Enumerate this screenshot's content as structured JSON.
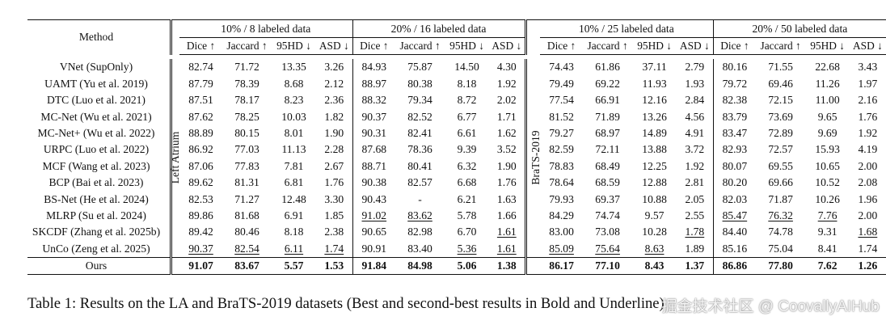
{
  "table": {
    "method_header": "Method",
    "groups": [
      {
        "label": "10% / 8 labeled data"
      },
      {
        "label": "20% / 16 labeled data"
      },
      {
        "label": "10% / 25 labeled data"
      },
      {
        "label": "20% / 50 labeled data"
      }
    ],
    "metrics": [
      "Dice ↑",
      "Jaccard ↑",
      "95HD ↓",
      "ASD ↓"
    ],
    "datasets": [
      {
        "label": "Left Atrium"
      },
      {
        "label": "BraTS-2019"
      }
    ],
    "rows": [
      {
        "method": "VNet (SupOnly)",
        "cells": [
          {
            "v": "82.74"
          },
          {
            "v": "71.72"
          },
          {
            "v": "13.35"
          },
          {
            "v": "3.26"
          },
          {
            "v": "84.93"
          },
          {
            "v": "75.87"
          },
          {
            "v": "14.50"
          },
          {
            "v": "4.30"
          },
          {
            "v": "74.43"
          },
          {
            "v": "61.86"
          },
          {
            "v": "37.11"
          },
          {
            "v": "2.79"
          },
          {
            "v": "80.16"
          },
          {
            "v": "71.55"
          },
          {
            "v": "22.68"
          },
          {
            "v": "3.43"
          }
        ]
      },
      {
        "method": "UAMT (Yu et al. 2019)",
        "cells": [
          {
            "v": "87.79"
          },
          {
            "v": "78.39"
          },
          {
            "v": "8.68"
          },
          {
            "v": "2.12"
          },
          {
            "v": "88.97"
          },
          {
            "v": "80.38"
          },
          {
            "v": "8.18"
          },
          {
            "v": "1.92"
          },
          {
            "v": "79.49"
          },
          {
            "v": "69.22"
          },
          {
            "v": "11.93"
          },
          {
            "v": "1.93"
          },
          {
            "v": "79.72"
          },
          {
            "v": "69.46"
          },
          {
            "v": "11.26"
          },
          {
            "v": "1.97"
          }
        ]
      },
      {
        "method": "DTC (Luo et al. 2021)",
        "cells": [
          {
            "v": "87.51"
          },
          {
            "v": "78.17"
          },
          {
            "v": "8.23"
          },
          {
            "v": "2.36"
          },
          {
            "v": "88.32"
          },
          {
            "v": "79.34"
          },
          {
            "v": "8.72"
          },
          {
            "v": "2.02"
          },
          {
            "v": "77.54"
          },
          {
            "v": "66.91"
          },
          {
            "v": "12.16"
          },
          {
            "v": "2.84"
          },
          {
            "v": "82.38"
          },
          {
            "v": "72.15"
          },
          {
            "v": "11.00"
          },
          {
            "v": "2.16"
          }
        ]
      },
      {
        "method": "MC-Net (Wu et al. 2021)",
        "cells": [
          {
            "v": "87.62"
          },
          {
            "v": "78.25"
          },
          {
            "v": "10.03"
          },
          {
            "v": "1.82"
          },
          {
            "v": "90.37"
          },
          {
            "v": "82.52"
          },
          {
            "v": "6.77"
          },
          {
            "v": "1.71"
          },
          {
            "v": "81.52"
          },
          {
            "v": "71.89"
          },
          {
            "v": "13.26"
          },
          {
            "v": "4.56"
          },
          {
            "v": "83.79"
          },
          {
            "v": "73.69"
          },
          {
            "v": "9.65"
          },
          {
            "v": "1.76"
          }
        ]
      },
      {
        "method": "MC-Net+ (Wu et al. 2022)",
        "cells": [
          {
            "v": "88.89"
          },
          {
            "v": "80.15"
          },
          {
            "v": "8.01"
          },
          {
            "v": "1.90"
          },
          {
            "v": "90.31"
          },
          {
            "v": "82.41"
          },
          {
            "v": "6.61"
          },
          {
            "v": "1.62"
          },
          {
            "v": "79.27"
          },
          {
            "v": "68.97"
          },
          {
            "v": "14.89"
          },
          {
            "v": "4.91"
          },
          {
            "v": "83.47"
          },
          {
            "v": "72.89"
          },
          {
            "v": "9.69"
          },
          {
            "v": "1.92"
          }
        ]
      },
      {
        "method": "URPC (Luo et al. 2022)",
        "cells": [
          {
            "v": "86.92"
          },
          {
            "v": "77.03"
          },
          {
            "v": "11.13"
          },
          {
            "v": "2.28"
          },
          {
            "v": "87.68"
          },
          {
            "v": "78.36"
          },
          {
            "v": "9.39"
          },
          {
            "v": "3.52"
          },
          {
            "v": "82.59"
          },
          {
            "v": "72.11"
          },
          {
            "v": "13.88"
          },
          {
            "v": "3.72"
          },
          {
            "v": "82.93"
          },
          {
            "v": "72.57"
          },
          {
            "v": "15.93"
          },
          {
            "v": "4.19"
          }
        ]
      },
      {
        "method": "MCF (Wang et al. 2023)",
        "cells": [
          {
            "v": "87.06"
          },
          {
            "v": "77.83"
          },
          {
            "v": "7.81"
          },
          {
            "v": "2.67"
          },
          {
            "v": "88.71"
          },
          {
            "v": "80.41"
          },
          {
            "v": "6.32"
          },
          {
            "v": "1.90"
          },
          {
            "v": "78.83"
          },
          {
            "v": "68.49"
          },
          {
            "v": "12.25"
          },
          {
            "v": "1.92"
          },
          {
            "v": "80.07"
          },
          {
            "v": "69.55"
          },
          {
            "v": "10.65"
          },
          {
            "v": "2.00"
          }
        ]
      },
      {
        "method": "BCP (Bai et al. 2023)",
        "cells": [
          {
            "v": "89.62"
          },
          {
            "v": "81.31"
          },
          {
            "v": "6.81"
          },
          {
            "v": "1.76"
          },
          {
            "v": "90.38"
          },
          {
            "v": "82.57"
          },
          {
            "v": "6.68"
          },
          {
            "v": "1.76"
          },
          {
            "v": "78.64"
          },
          {
            "v": "68.59"
          },
          {
            "v": "12.88"
          },
          {
            "v": "2.81"
          },
          {
            "v": "80.20"
          },
          {
            "v": "69.66"
          },
          {
            "v": "10.52"
          },
          {
            "v": "2.08"
          }
        ]
      },
      {
        "method": "BS-Net (He et al. 2024)",
        "cells": [
          {
            "v": "82.53"
          },
          {
            "v": "71.27"
          },
          {
            "v": "12.48"
          },
          {
            "v": "3.30"
          },
          {
            "v": "90.43"
          },
          {
            "v": "-"
          },
          {
            "v": "6.21"
          },
          {
            "v": "1.63"
          },
          {
            "v": "79.93"
          },
          {
            "v": "69.37"
          },
          {
            "v": "10.88"
          },
          {
            "v": "2.05"
          },
          {
            "v": "82.03"
          },
          {
            "v": "71.87"
          },
          {
            "v": "10.26"
          },
          {
            "v": "1.96"
          }
        ]
      },
      {
        "method": "MLRP (Su et al. 2024)",
        "cells": [
          {
            "v": "89.86"
          },
          {
            "v": "81.68"
          },
          {
            "v": "6.91"
          },
          {
            "v": "1.85"
          },
          {
            "v": "91.02",
            "s": "u"
          },
          {
            "v": "83.62",
            "s": "u"
          },
          {
            "v": "5.78"
          },
          {
            "v": "1.66"
          },
          {
            "v": "84.29"
          },
          {
            "v": "74.74"
          },
          {
            "v": "9.57"
          },
          {
            "v": "2.55"
          },
          {
            "v": "85.47",
            "s": "u"
          },
          {
            "v": "76.32",
            "s": "u"
          },
          {
            "v": "7.76",
            "s": "u"
          },
          {
            "v": "2.00"
          }
        ]
      },
      {
        "method": "SKCDF (Zhang et al. 2025b)",
        "cells": [
          {
            "v": "89.42"
          },
          {
            "v": "80.46"
          },
          {
            "v": "8.18"
          },
          {
            "v": "2.38"
          },
          {
            "v": "90.65"
          },
          {
            "v": "82.98"
          },
          {
            "v": "6.70"
          },
          {
            "v": "1.61",
            "s": "u"
          },
          {
            "v": "83.00"
          },
          {
            "v": "73.08"
          },
          {
            "v": "10.28"
          },
          {
            "v": "1.78",
            "s": "u"
          },
          {
            "v": "84.40"
          },
          {
            "v": "74.78"
          },
          {
            "v": "9.31"
          },
          {
            "v": "1.68",
            "s": "u"
          }
        ]
      },
      {
        "method": "UnCo (Zeng et al. 2025)",
        "cells": [
          {
            "v": "90.37",
            "s": "u"
          },
          {
            "v": "82.54",
            "s": "u"
          },
          {
            "v": "6.11",
            "s": "u"
          },
          {
            "v": "1.74",
            "s": "u"
          },
          {
            "v": "90.91"
          },
          {
            "v": "83.40"
          },
          {
            "v": "5.36",
            "s": "u"
          },
          {
            "v": "1.61",
            "s": "u"
          },
          {
            "v": "85.09",
            "s": "u"
          },
          {
            "v": "75.64",
            "s": "u"
          },
          {
            "v": "8.63",
            "s": "u"
          },
          {
            "v": "1.89"
          },
          {
            "v": "85.16"
          },
          {
            "v": "75.04"
          },
          {
            "v": "8.41"
          },
          {
            "v": "1.74"
          }
        ]
      },
      {
        "method": "Ours",
        "method_bold": true,
        "cells": [
          {
            "v": "91.07",
            "s": "b"
          },
          {
            "v": "83.67",
            "s": "b"
          },
          {
            "v": "5.57",
            "s": "b"
          },
          {
            "v": "1.53",
            "s": "b"
          },
          {
            "v": "91.84",
            "s": "b"
          },
          {
            "v": "84.98",
            "s": "b"
          },
          {
            "v": "5.06",
            "s": "b"
          },
          {
            "v": "1.38",
            "s": "b"
          },
          {
            "v": "86.17",
            "s": "b"
          },
          {
            "v": "77.10",
            "s": "b"
          },
          {
            "v": "8.43",
            "s": "b"
          },
          {
            "v": "1.37",
            "s": "b"
          },
          {
            "v": "86.86",
            "s": "b"
          },
          {
            "v": "77.80",
            "s": "b"
          },
          {
            "v": "7.62",
            "s": "b"
          },
          {
            "v": "1.26",
            "s": "b"
          }
        ]
      }
    ]
  },
  "caption": "Table 1: Results on the LA and BraTS-2019 datasets (Best and second-best results in Bold and Underline)",
  "watermark": "掘金技术社区 @ CoovallyAIHub"
}
